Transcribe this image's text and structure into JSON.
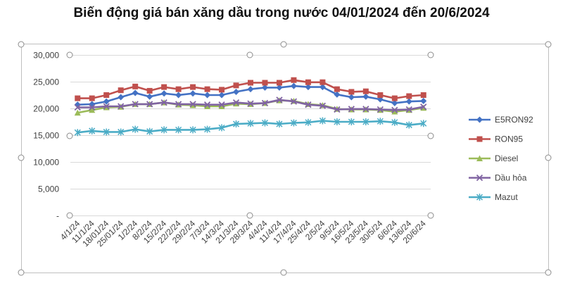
{
  "title": "Biến động giá bán xăng dầu trong nước 04/01/2024 đến 20/6/2024",
  "chart_data": {
    "type": "line",
    "title": "Biến động giá bán xăng dầu trong nước 04/01/2024 đến 20/6/2024",
    "xlabel": "",
    "ylabel": "",
    "ylim": [
      0,
      30000
    ],
    "yticks": [
      "-",
      "5,000",
      "10,000",
      "15,000",
      "20,000",
      "25,000",
      "30,000"
    ],
    "grid": true,
    "legend_position": "right",
    "categories": [
      "4/1/24",
      "11/1/24",
      "18/01/24",
      "25/01/24",
      "1/2/24",
      "8/2/24",
      "15/2/24",
      "22/2/24",
      "29/2/24",
      "7/3/24",
      "14/3/24",
      "21/3/24",
      "28/3/24",
      "4/4/24",
      "11/4/24",
      "17/4/24",
      "25/4/24",
      "2/5/24",
      "9/5/24",
      "16/5/24",
      "23/5/24",
      "30/5/24",
      "6/6/24",
      "13/6/24",
      "20/6/24"
    ],
    "series": [
      {
        "name": "E5RON92",
        "color": "#4472C4",
        "marker": "diamond",
        "values": [
          20700,
          20800,
          21300,
          22100,
          22900,
          22200,
          22800,
          22500,
          22800,
          22500,
          22500,
          23100,
          23600,
          23900,
          23900,
          24200,
          24000,
          24000,
          22600,
          22100,
          22200,
          21700,
          21000,
          21300,
          21400
        ]
      },
      {
        "name": "RON95",
        "color": "#C0504D",
        "marker": "square",
        "values": [
          21900,
          21900,
          22500,
          23400,
          24100,
          23300,
          24000,
          23600,
          24000,
          23600,
          23500,
          24300,
          24800,
          24800,
          24800,
          25300,
          24900,
          24900,
          23600,
          23100,
          23200,
          22500,
          21900,
          22300,
          22500
        ]
      },
      {
        "name": "Diesel",
        "color": "#9BBB59",
        "marker": "triangle",
        "values": [
          19200,
          19700,
          20200,
          20300,
          20800,
          20800,
          21100,
          20700,
          20600,
          20400,
          20400,
          20900,
          20800,
          21000,
          21500,
          21400,
          20800,
          20600,
          19900,
          19800,
          19800,
          19700,
          19400,
          19700,
          20100
        ]
      },
      {
        "name": "Dầu hỏa",
        "color": "#8064A2",
        "marker": "x",
        "values": [
          20200,
          20200,
          20400,
          20400,
          20800,
          20800,
          21100,
          20800,
          20800,
          20700,
          20700,
          21100,
          20900,
          21000,
          21600,
          21300,
          20700,
          20500,
          19800,
          19900,
          19900,
          19800,
          19700,
          19800,
          20300
        ]
      },
      {
        "name": "Mazut",
        "color": "#4BACC6",
        "marker": "star",
        "values": [
          15500,
          15800,
          15600,
          15600,
          16100,
          15700,
          16000,
          16000,
          16000,
          16100,
          16400,
          17100,
          17200,
          17300,
          17100,
          17300,
          17400,
          17700,
          17500,
          17500,
          17500,
          17600,
          17400,
          16900,
          17200
        ]
      }
    ]
  }
}
